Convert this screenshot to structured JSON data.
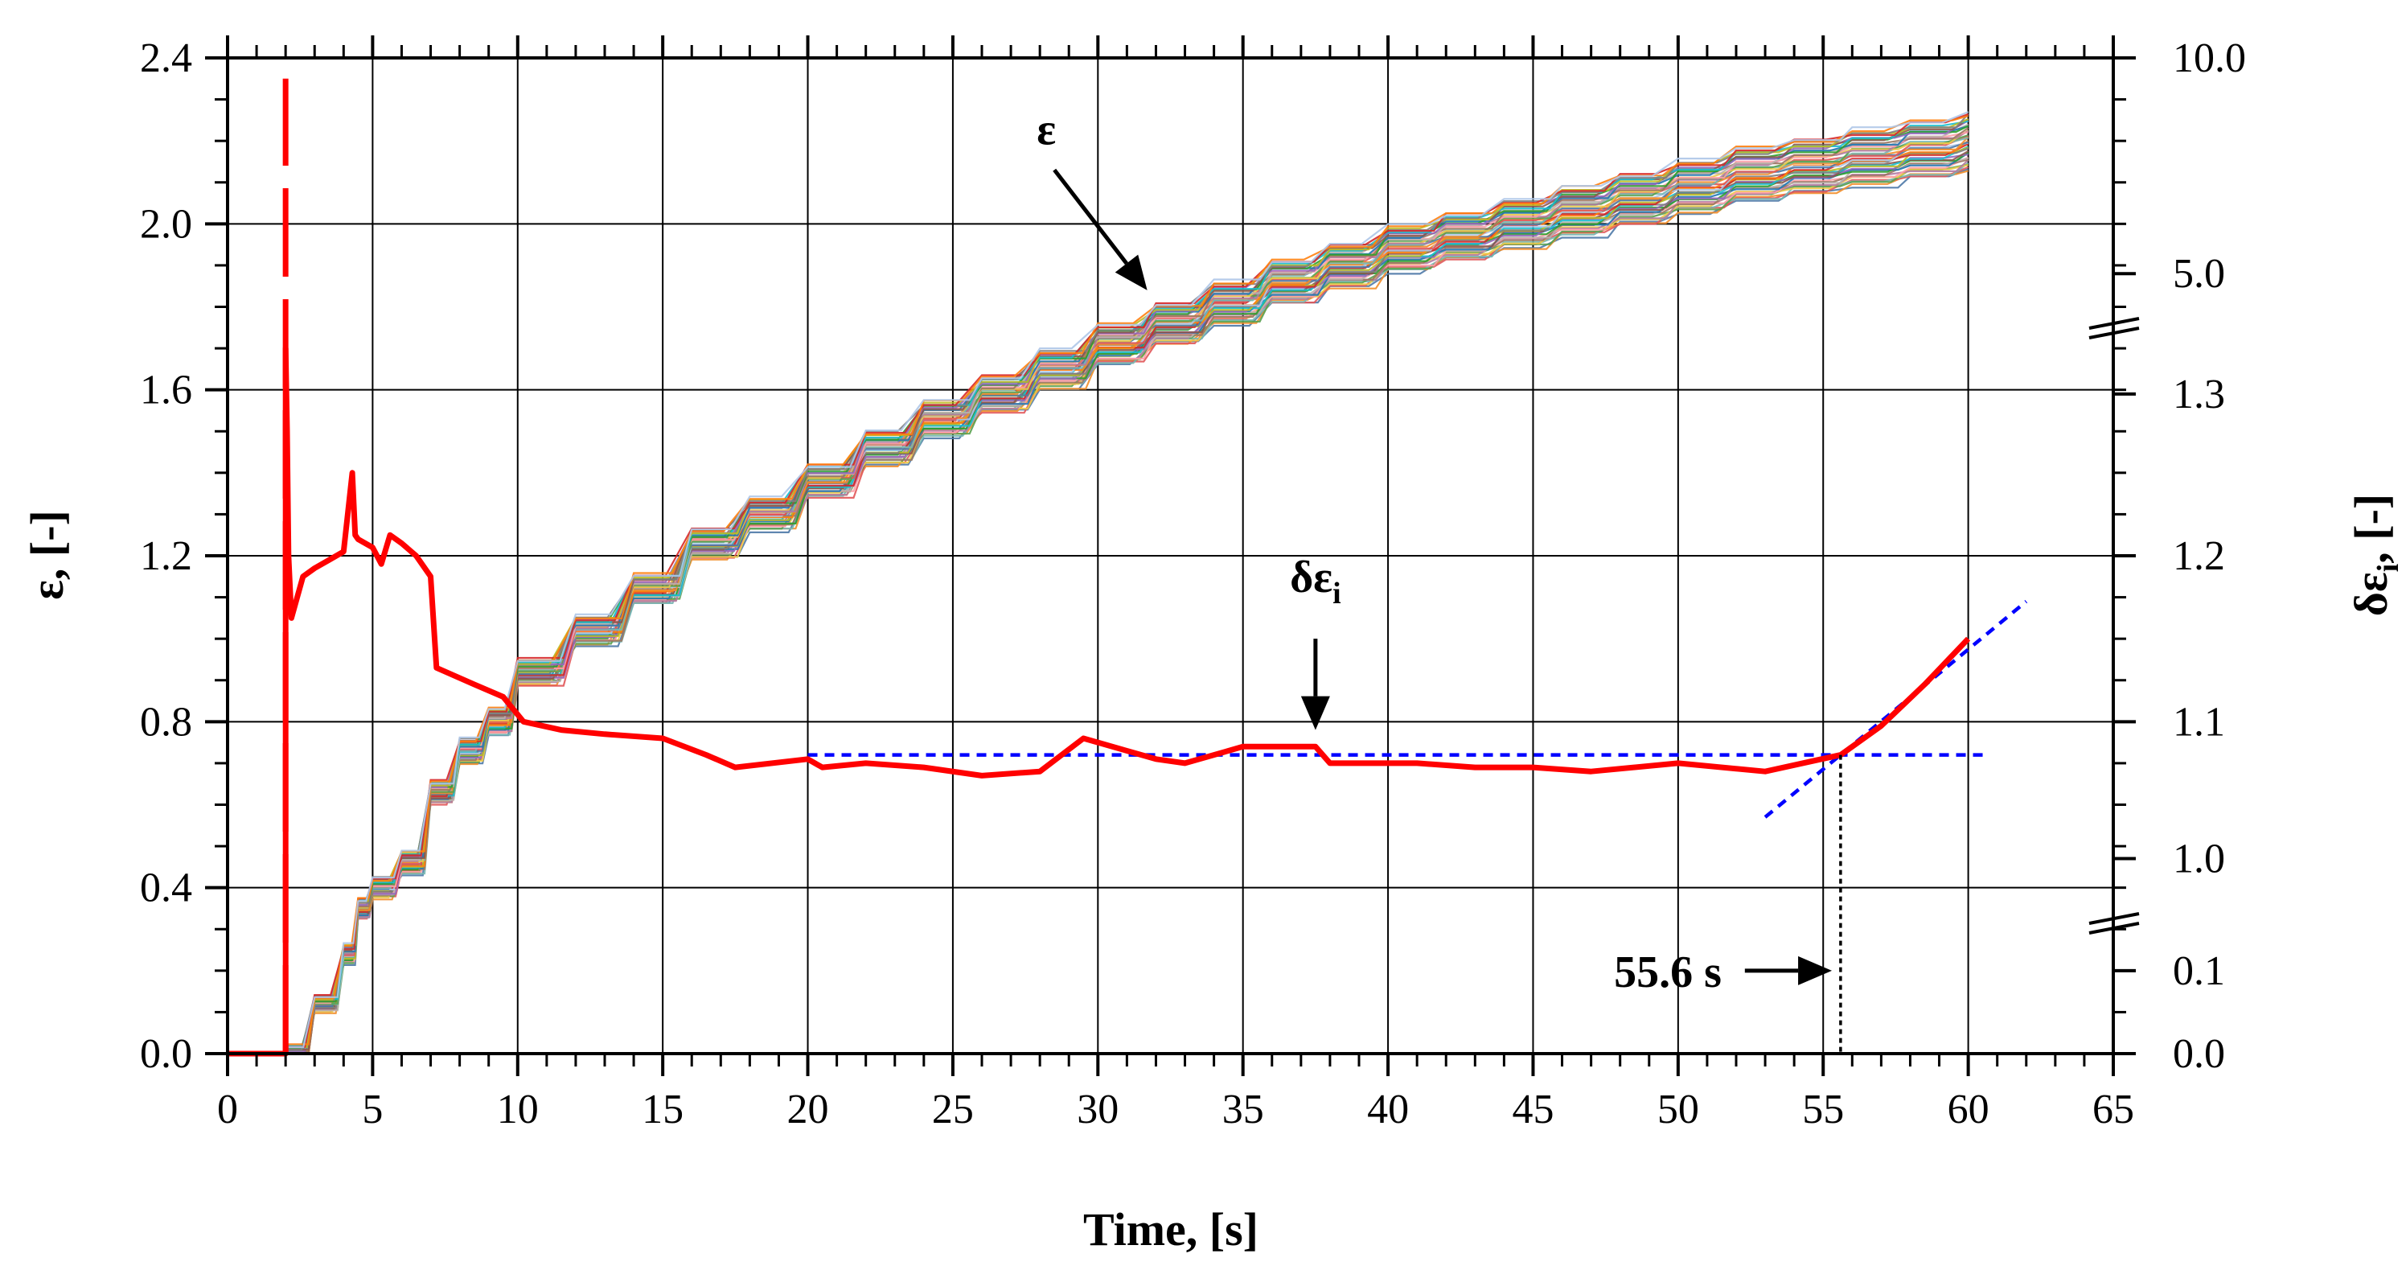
{
  "chart_data": {
    "type": "line",
    "xlabel": "Time, [s]",
    "ylabel_left": "ε, [-]",
    "ylabel_right_main": "δε",
    "ylabel_right_sub": "i",
    "ylabel_right_suffix": ", [-]",
    "xlim": [
      0,
      65
    ],
    "ylim_left": [
      0.0,
      2.4
    ],
    "x_ticks": [
      "0",
      "5",
      "10",
      "15",
      "20",
      "25",
      "30",
      "35",
      "40",
      "45",
      "50",
      "55",
      "60",
      "65"
    ],
    "y_left_ticks": [
      "0.0",
      "0.4",
      "0.8",
      "1.2",
      "1.6",
      "2.0",
      "2.4"
    ],
    "y_right_ticks": [
      "0.0",
      "0.1",
      "1.0",
      "1.1",
      "1.2",
      "1.3",
      "5.0",
      "10.0"
    ],
    "grid": true,
    "strain_band": {
      "name": "ε",
      "description_count": 40,
      "t": [
        2.0,
        3,
        4,
        4.5,
        5,
        6,
        7,
        8,
        9,
        10,
        12,
        14,
        16,
        18,
        20,
        22,
        24,
        26,
        28,
        30,
        32,
        34,
        36,
        38,
        40,
        42,
        44,
        46,
        48,
        50,
        52,
        54,
        56,
        58,
        60
      ],
      "mean": [
        0.0,
        0.12,
        0.24,
        0.35,
        0.4,
        0.46,
        0.63,
        0.73,
        0.8,
        0.92,
        1.02,
        1.12,
        1.23,
        1.3,
        1.38,
        1.46,
        1.53,
        1.59,
        1.65,
        1.71,
        1.76,
        1.81,
        1.86,
        1.9,
        1.94,
        1.97,
        2.0,
        2.03,
        2.06,
        2.09,
        2.12,
        2.14,
        2.16,
        2.18,
        2.2
      ],
      "spread_end": 0.14
    },
    "delta_eps_i": {
      "name": "δε",
      "subscript": "i",
      "color": "#ff0000",
      "t": [
        0,
        2.0,
        2.0,
        2.05,
        2.1,
        2.2,
        2.4,
        2.6,
        3.0,
        3.5,
        4.0,
        4.3,
        4.4,
        4.5,
        5.0,
        5.3,
        5.6,
        6.0,
        6.5,
        7.0,
        7.2,
        8.5,
        9.5,
        10.2,
        11.5,
        13,
        15,
        16.5,
        17.5,
        20,
        20.5,
        22,
        24,
        26,
        28,
        29.5,
        32,
        33,
        35,
        37.5,
        38,
        41,
        43,
        45,
        47,
        50,
        53,
        55.6,
        57,
        58.5,
        60
      ],
      "y": [
        0.0,
        0.0,
        1.7,
        1.5,
        1.2,
        1.05,
        1.1,
        1.15,
        1.17,
        1.19,
        1.21,
        1.4,
        1.25,
        1.24,
        1.22,
        1.18,
        1.25,
        1.23,
        1.2,
        1.15,
        0.93,
        0.89,
        0.86,
        0.8,
        0.78,
        0.77,
        0.76,
        0.72,
        0.69,
        0.71,
        0.69,
        0.7,
        0.69,
        0.67,
        0.68,
        0.76,
        0.71,
        0.7,
        0.74,
        0.74,
        0.7,
        0.7,
        0.69,
        0.69,
        0.68,
        0.7,
        0.68,
        0.72,
        0.79,
        0.89,
        1.0
      ],
      "spike_top": 2.35
    },
    "baseline_fit": {
      "t": [
        20,
        60.5
      ],
      "y": [
        0.72,
        0.72
      ],
      "color": "#0000ff"
    },
    "tail_fit": {
      "t": [
        53,
        62
      ],
      "y": [
        0.57,
        1.09
      ],
      "color": "#0000ff"
    },
    "marker_time": {
      "t": 55.6,
      "y_top": 0.72,
      "label": "55.6 s"
    },
    "annotations": {
      "eps_label": "ε",
      "eps_arrow": {
        "from": [
          28.5,
          2.13
        ],
        "to": [
          31.7,
          1.84
        ]
      },
      "delta_label_main": "δε",
      "delta_label_sub": "i",
      "delta_arrow": {
        "from": [
          37.5,
          1.0
        ],
        "to": [
          37.5,
          0.78
        ]
      }
    }
  }
}
